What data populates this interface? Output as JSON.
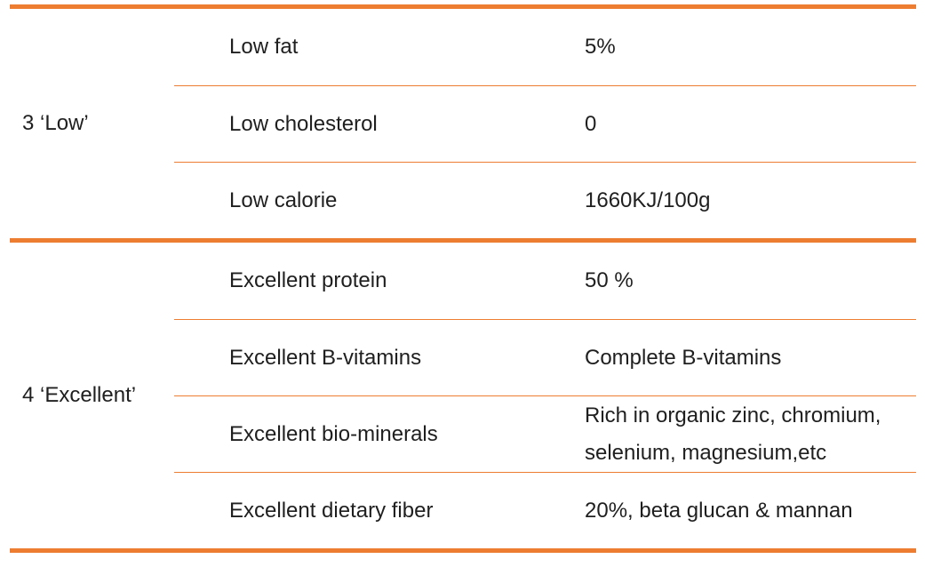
{
  "table": {
    "accent_color": "#ED7D31",
    "text_color": "#1f1f1f",
    "groups": [
      {
        "label": "3 ‘Low’",
        "rows": [
          {
            "name": "Low fat",
            "value": "5%"
          },
          {
            "name": "Low cholesterol",
            "value": "0"
          },
          {
            "name": "Low calorie",
            "value": "1660KJ/100g"
          }
        ]
      },
      {
        "label": "4 ‘Excellent’",
        "rows": [
          {
            "name": "Excellent protein",
            "value": "50 %"
          },
          {
            "name": "Excellent B-vitamins",
            "value": "Complete B-vitamins"
          },
          {
            "name": "Excellent bio-minerals",
            "value": "Rich in organic zinc, chromium, selenium, magnesium,etc"
          },
          {
            "name": "Excellent dietary fiber",
            "value": "20%, beta glucan & mannan"
          }
        ]
      }
    ]
  }
}
